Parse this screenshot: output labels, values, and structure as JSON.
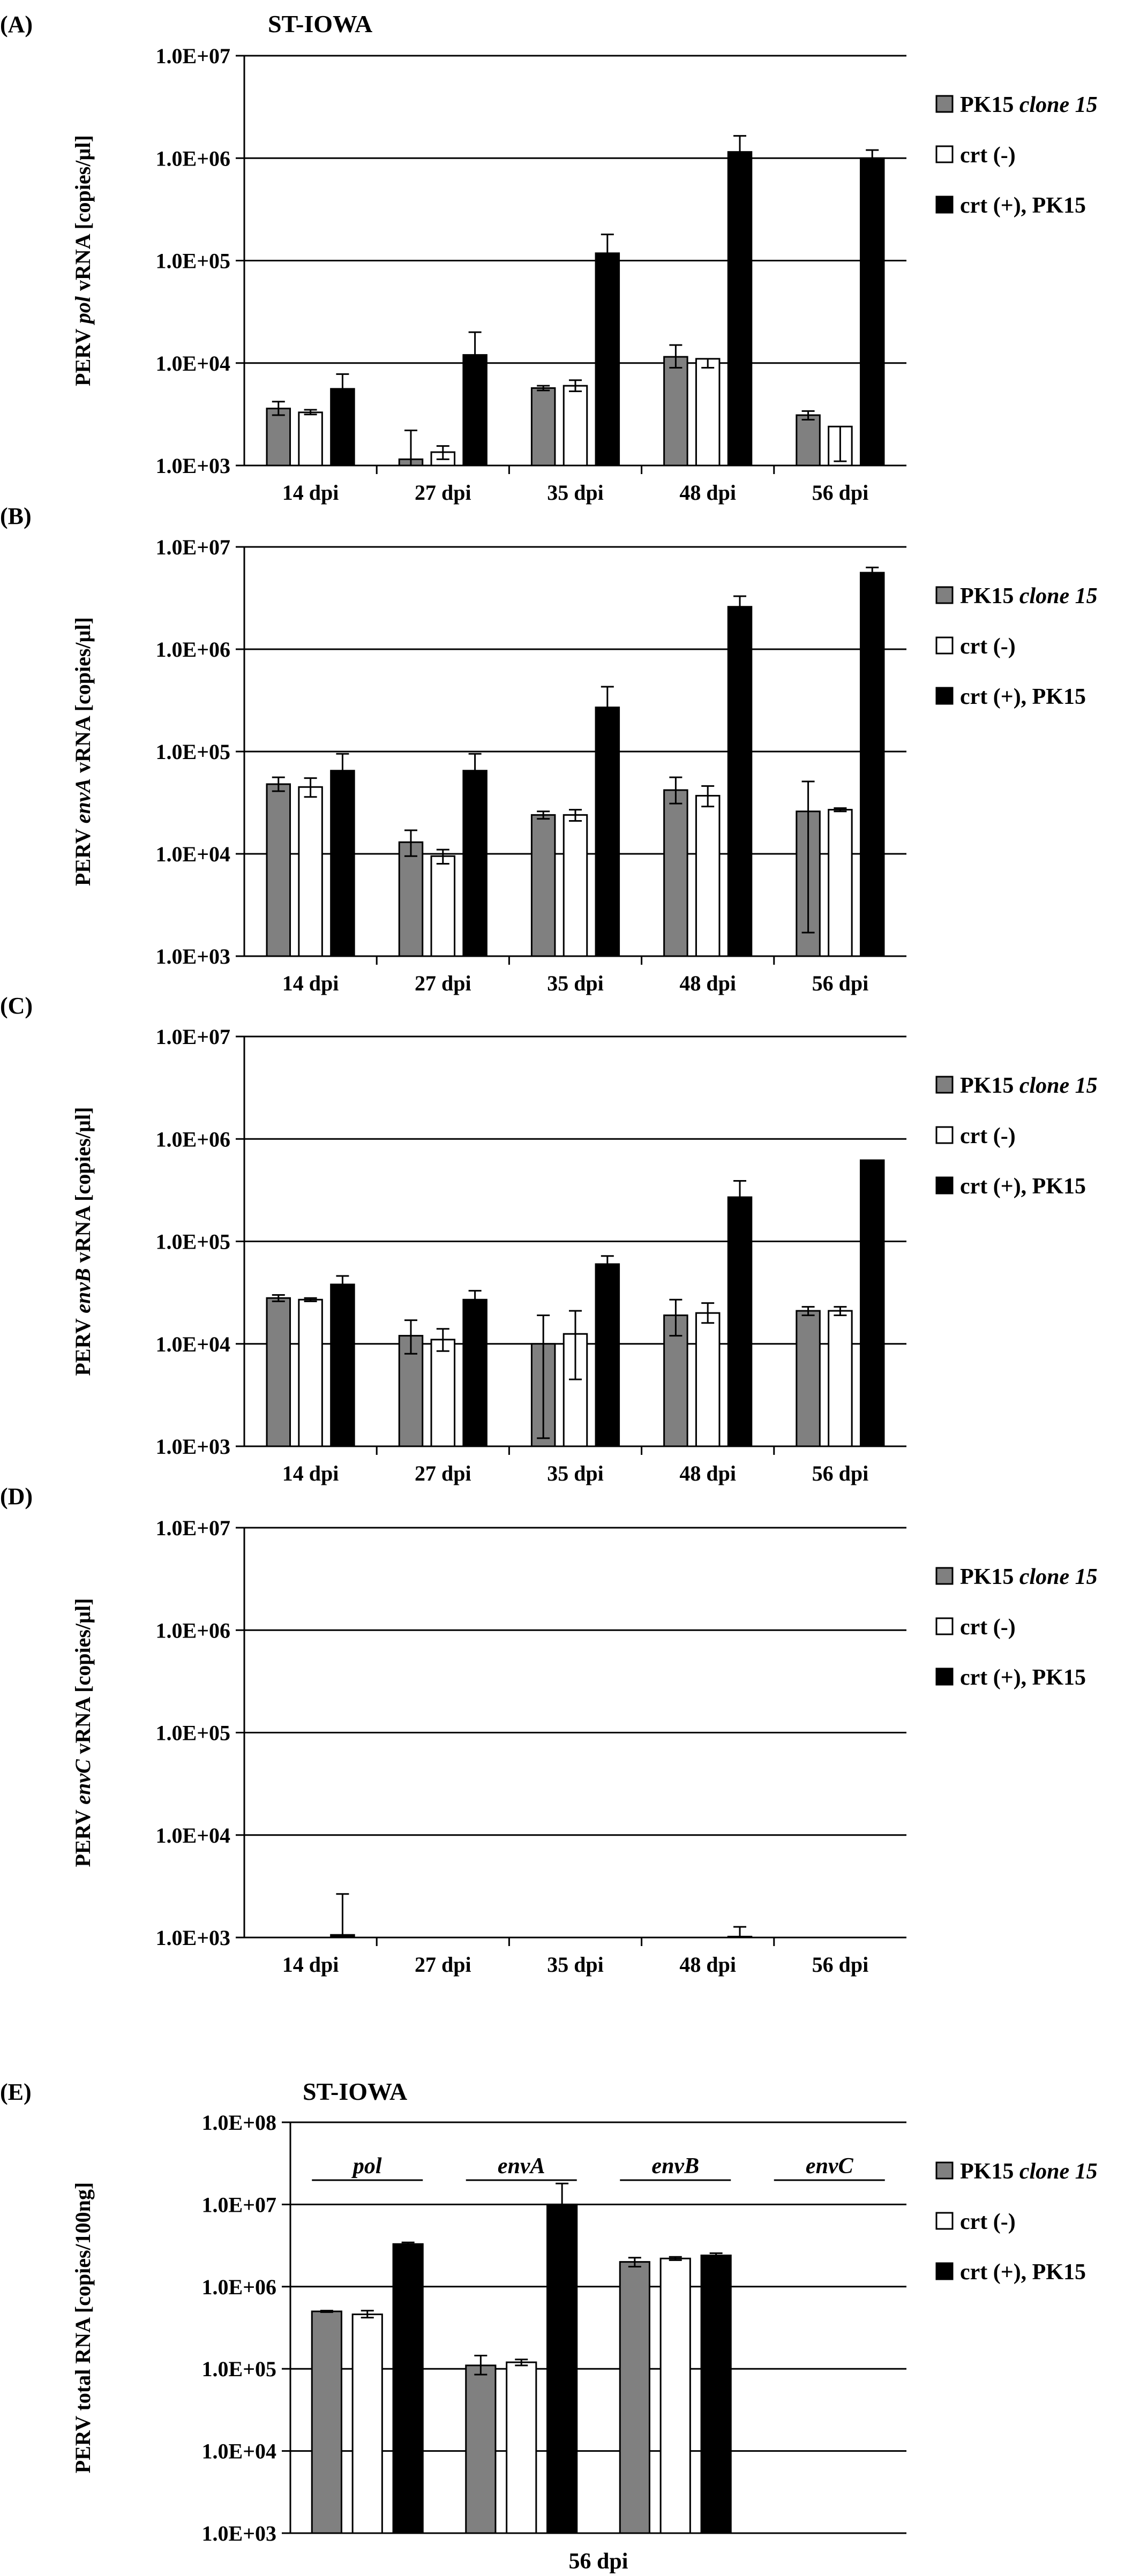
{
  "colors": {
    "pk15": "#808080",
    "crt_neg": "#ffffff",
    "crt_pos": "#000000",
    "grid": "#000000"
  },
  "chart_data": [
    {
      "panel": "(A)",
      "title": "ST-IOWA",
      "type": "bar",
      "yscale": "log",
      "ylabel_parts": [
        "PERV ",
        "pol",
        " vRNA [copies/µl]"
      ],
      "yticks": [
        "1.0E+03",
        "1.0E+04",
        "1.0E+05",
        "1.0E+06",
        "1.0E+07"
      ],
      "ylim": [
        1000,
        10000000
      ],
      "categories": [
        "14 dpi",
        "27 dpi",
        "35 dpi",
        "48 dpi",
        "56 dpi"
      ],
      "legend": [
        {
          "parts": [
            "PK15 ",
            "clone 15"
          ],
          "color_key": "pk15"
        },
        {
          "parts": [
            "crt (-)"
          ],
          "color_key": "crt_neg"
        },
        {
          "parts": [
            "crt (+), PK15"
          ],
          "color_key": "crt_pos"
        }
      ],
      "series": [
        {
          "color_key": "pk15",
          "values": [
            3600,
            1150,
            5700,
            11500,
            3100
          ],
          "err_up": [
            600,
            1050,
            300,
            3500,
            300
          ],
          "err_dn": [
            500,
            150,
            300,
            2500,
            300
          ]
        },
        {
          "color_key": "crt_neg",
          "values": [
            3300,
            1350,
            6000,
            11000,
            2400
          ],
          "err_up": [
            200,
            200,
            800,
            0,
            0
          ],
          "err_dn": [
            150,
            200,
            700,
            2000,
            1300
          ]
        },
        {
          "color_key": "crt_pos",
          "values": [
            5600,
            12000,
            118000,
            1150000,
            1000000
          ],
          "err_up": [
            2200,
            8000,
            62000,
            500000,
            200000
          ],
          "err_dn": [
            0,
            0,
            0,
            0,
            0
          ]
        }
      ]
    },
    {
      "panel": "(B)",
      "title": "",
      "type": "bar",
      "yscale": "log",
      "ylabel_parts": [
        "PERV ",
        "envA",
        " vRNA [copies/µl]"
      ],
      "yticks": [
        "1.0E+03",
        "1.0E+04",
        "1.0E+05",
        "1.0E+06",
        "1.0E+07"
      ],
      "ylim": [
        1000,
        10000000
      ],
      "categories": [
        "14 dpi",
        "27 dpi",
        "35 dpi",
        "48 dpi",
        "56 dpi"
      ],
      "legend": [
        {
          "parts": [
            "PK15 ",
            "clone 15"
          ],
          "color_key": "pk15"
        },
        {
          "parts": [
            "crt (-)"
          ],
          "color_key": "crt_neg"
        },
        {
          "parts": [
            "crt (+), PK15"
          ],
          "color_key": "crt_pos"
        }
      ],
      "series": [
        {
          "color_key": "pk15",
          "values": [
            48000,
            13000,
            24000,
            42000,
            26000
          ],
          "err_up": [
            8000,
            4000,
            2000,
            14000,
            25000
          ],
          "err_dn": [
            7000,
            3500,
            2000,
            11000,
            24300
          ]
        },
        {
          "color_key": "crt_neg",
          "values": [
            45000,
            9500,
            24000,
            37000,
            27000
          ],
          "err_up": [
            10000,
            1500,
            3000,
            9000,
            1000
          ],
          "err_dn": [
            9000,
            1500,
            3000,
            8000,
            1000
          ]
        },
        {
          "color_key": "crt_pos",
          "values": [
            65000,
            65000,
            270000,
            2600000,
            5600000
          ],
          "err_up": [
            30000,
            30000,
            160000,
            700000,
            700000
          ],
          "err_dn": [
            0,
            0,
            0,
            0,
            0
          ]
        }
      ]
    },
    {
      "panel": "(C)",
      "title": "",
      "type": "bar",
      "yscale": "log",
      "ylabel_parts": [
        "PERV ",
        "envB",
        " vRNA [copies/µl]"
      ],
      "yticks": [
        "1.0E+03",
        "1.0E+04",
        "1.0E+05",
        "1.0E+06",
        "1.0E+07"
      ],
      "ylim": [
        1000,
        10000000
      ],
      "categories": [
        "14 dpi",
        "27 dpi",
        "35 dpi",
        "48 dpi",
        "56 dpi"
      ],
      "legend": [
        {
          "parts": [
            "PK15 ",
            "clone 15"
          ],
          "color_key": "pk15"
        },
        {
          "parts": [
            "crt (-)"
          ],
          "color_key": "crt_neg"
        },
        {
          "parts": [
            "crt (+), PK15"
          ],
          "color_key": "crt_pos"
        }
      ],
      "series": [
        {
          "color_key": "pk15",
          "values": [
            28000,
            12000,
            10000,
            19000,
            21000
          ],
          "err_up": [
            2000,
            5000,
            9000,
            8000,
            2000
          ],
          "err_dn": [
            2000,
            4000,
            8800,
            7000,
            2000
          ]
        },
        {
          "color_key": "crt_neg",
          "values": [
            27000,
            11000,
            12500,
            20000,
            21000
          ],
          "err_up": [
            1000,
            3000,
            8500,
            5000,
            2000
          ],
          "err_dn": [
            1000,
            2500,
            8000,
            4000,
            2000
          ]
        },
        {
          "color_key": "crt_pos",
          "values": [
            38000,
            27000,
            60000,
            270000,
            620000
          ],
          "err_up": [
            8000,
            6000,
            12000,
            120000,
            0
          ],
          "err_dn": [
            0,
            0,
            0,
            0,
            0
          ]
        }
      ]
    },
    {
      "panel": "(D)",
      "title": "",
      "type": "bar",
      "yscale": "log",
      "ylabel_parts": [
        "PERV ",
        "envC",
        " vRNA [copies/µl]"
      ],
      "yticks": [
        "1.0E+03",
        "1.0E+04",
        "1.0E+05",
        "1.0E+06",
        "1.0E+07"
      ],
      "ylim": [
        1000,
        10000000
      ],
      "categories": [
        "14 dpi",
        "27 dpi",
        "35 dpi",
        "48 dpi",
        "56 dpi"
      ],
      "legend": [
        {
          "parts": [
            "PK15 ",
            "clone 15"
          ],
          "color_key": "pk15"
        },
        {
          "parts": [
            "crt (-)"
          ],
          "color_key": "crt_neg"
        },
        {
          "parts": [
            "crt (+), PK15"
          ],
          "color_key": "crt_pos"
        }
      ],
      "series": [
        {
          "color_key": "pk15",
          "values": [
            1000,
            1000,
            1000,
            1000,
            1000
          ],
          "err_up": [
            0,
            0,
            0,
            0,
            0
          ],
          "err_dn": [
            0,
            0,
            0,
            0,
            0
          ]
        },
        {
          "color_key": "crt_neg",
          "values": [
            1000,
            1000,
            1000,
            1000,
            1000
          ],
          "err_up": [
            0,
            0,
            0,
            0,
            0
          ],
          "err_dn": [
            0,
            0,
            0,
            0,
            0
          ]
        },
        {
          "color_key": "crt_pos",
          "values": [
            1060,
            1000,
            1000,
            1020,
            1000
          ],
          "err_up": [
            1600,
            0,
            0,
            250,
            0
          ],
          "err_dn": [
            0,
            0,
            0,
            0,
            0
          ]
        }
      ]
    },
    {
      "panel": "(E)",
      "title": "ST-IOWA",
      "type": "bar",
      "yscale": "log",
      "ylabel_parts": [
        "PERV total RNA [copies/100ng]"
      ],
      "yticks": [
        "1.0E+03",
        "1.0E+04",
        "1.0E+05",
        "1.0E+06",
        "1.0E+07",
        "1.0E+08"
      ],
      "ylim": [
        1000,
        100000000
      ],
      "categories": [
        "pol",
        "envA",
        "envB",
        "envC"
      ],
      "xlabel": "56 dpi",
      "legend": [
        {
          "parts": [
            "PK15 ",
            "clone 15"
          ],
          "color_key": "pk15"
        },
        {
          "parts": [
            "crt (-)"
          ],
          "color_key": "crt_neg"
        },
        {
          "parts": [
            "crt (+), PK15"
          ],
          "color_key": "crt_pos"
        }
      ],
      "series": [
        {
          "color_key": "pk15",
          "values": [
            500000,
            110000,
            2000000,
            1000
          ],
          "err_up": [
            10000,
            35000,
            250000,
            0
          ],
          "err_dn": [
            10000,
            25000,
            250000,
            0
          ]
        },
        {
          "color_key": "crt_neg",
          "values": [
            460000,
            120000,
            2200000,
            1000
          ],
          "err_up": [
            50000,
            10000,
            100000,
            0
          ],
          "err_dn": [
            40000,
            10000,
            100000,
            0
          ]
        },
        {
          "color_key": "crt_pos",
          "values": [
            3300000,
            10000000,
            2400000,
            1000
          ],
          "err_up": [
            150000,
            8000000,
            150000,
            0
          ],
          "err_dn": [
            0,
            0,
            0,
            0
          ]
        }
      ]
    }
  ]
}
